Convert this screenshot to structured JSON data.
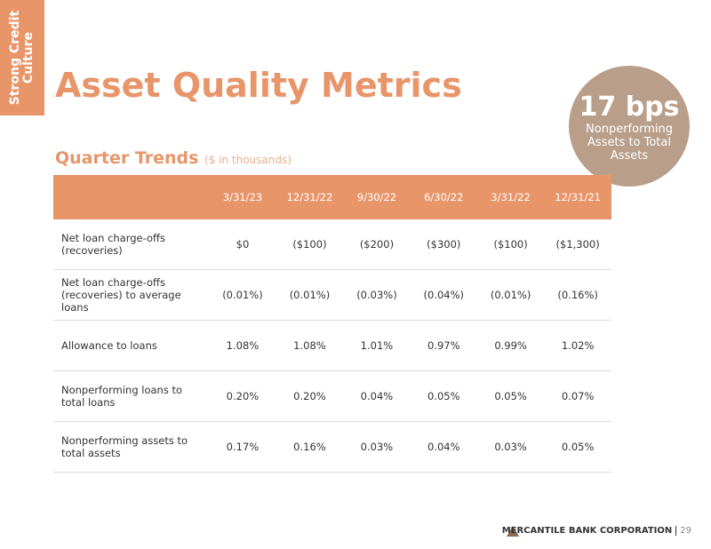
{
  "side_label": "Strong Credit Culture",
  "title": "Asset Quality Metrics",
  "callout": {
    "value": "17 bps",
    "text": "Nonperforming Assets to Total Assets"
  },
  "subtitle": "Quarter Trends",
  "subtitle_note": "($ in thousands)",
  "table": {
    "columns": [
      "3/31/23",
      "12/31/22",
      "9/30/22",
      "6/30/22",
      "3/31/22",
      "12/31/21"
    ],
    "rows": [
      [
        "Net loan charge-offs (recoveries)",
        "$0",
        "($100)",
        "($200)",
        "($300)",
        "($100)",
        "($1,300)"
      ],
      [
        "Net loan charge-offs (recoveries) to average loans",
        "(0.01%)",
        "(0.01%)",
        "(0.03%)",
        "(0.04%)",
        "(0.01%)",
        "(0.16%)"
      ],
      [
        "Allowance to loans",
        "1.08%",
        "1.08%",
        "1.01%",
        "0.97%",
        "0.99%",
        "1.02%"
      ],
      [
        "Nonperforming loans to total loans",
        "0.20%",
        "0.20%",
        "0.04%",
        "0.05%",
        "0.05%",
        "0.07%"
      ],
      [
        "Nonperforming assets to total assets",
        "0.17%",
        "0.16%",
        "0.03%",
        "0.04%",
        "0.03%",
        "0.05%"
      ]
    ]
  },
  "footer": {
    "company": "MERCANTILE BANK CORPORATION",
    "page": "29"
  }
}
